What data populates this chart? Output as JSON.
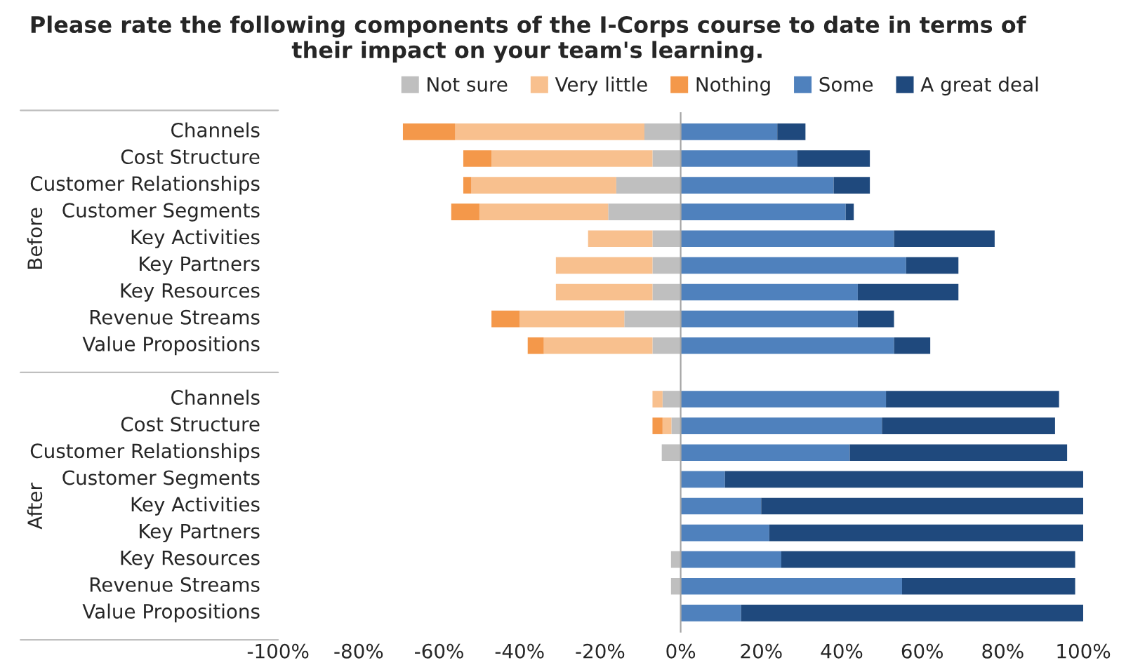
{
  "chart_data": {
    "type": "bar",
    "orientation": "horizontal",
    "stacked": true,
    "title": "Please rate the following components of the I-Corps course to date in terms of their impact on your team's learning.",
    "categories": [
      "Channels",
      "Cost Structure",
      "Customer Relationships",
      "Customer Segments",
      "Key Activities",
      "Key Partners",
      "Key Resources",
      "Revenue Streams",
      "Value Propositions",
      "Channels",
      "Cost Structure",
      "Customer Relationships",
      "Customer Segments",
      "Key Activities",
      "Key Partners",
      "Key Resources",
      "Revenue Streams",
      "Value Propositions"
    ],
    "annotations": [
      "Before",
      "After"
    ],
    "series": [
      {
        "name": "Not sure",
        "color": "#bfbfbf",
        "values": [
          -9,
          -7,
          -16,
          -18,
          -7,
          -7,
          -7,
          -14,
          -7,
          -4.5,
          -2.3,
          -4.7,
          null,
          null,
          null,
          -2.4,
          -2.4,
          null
        ]
      },
      {
        "name": "Very little",
        "color": "#f8c08e",
        "values": [
          -47,
          -40,
          -36,
          -32,
          -16,
          -24,
          -24,
          -26,
          -27,
          -2.5,
          -2.2,
          null,
          null,
          null,
          null,
          null,
          null,
          null
        ]
      },
      {
        "name": "Nothing",
        "color": "#f4984a",
        "values": [
          -13,
          -7,
          -2,
          -7,
          null,
          null,
          null,
          -7,
          -4,
          null,
          -2.5,
          null,
          null,
          null,
          null,
          null,
          null,
          null
        ]
      },
      {
        "name": "Some",
        "color": "#4f81bd",
        "values": [
          24,
          29,
          38,
          41,
          53,
          56,
          44,
          44,
          53,
          51,
          50,
          42,
          11,
          20,
          22,
          25,
          55,
          15
        ]
      },
      {
        "name": "A great deal",
        "color": "#1f497d",
        "values": [
          7,
          18,
          9,
          2,
          25,
          13,
          25,
          9,
          9,
          43,
          43,
          54,
          89,
          80,
          78,
          73,
          43,
          85
        ]
      }
    ],
    "xlim": [
      -100,
      100
    ],
    "xticks": [
      {
        "value": -100,
        "label": "-100%"
      },
      {
        "value": -80,
        "label": "-80%"
      },
      {
        "value": -60,
        "label": "-60%"
      },
      {
        "value": -40,
        "label": "-40%"
      },
      {
        "value": -20,
        "label": "-20%"
      },
      {
        "value": 0,
        "label": "0%"
      },
      {
        "value": 20,
        "label": "20%"
      },
      {
        "value": 40,
        "label": "40%"
      },
      {
        "value": 60,
        "label": "60%"
      },
      {
        "value": 80,
        "label": "80%"
      },
      {
        "value": 100,
        "label": "100%"
      }
    ],
    "legend": "top"
  }
}
